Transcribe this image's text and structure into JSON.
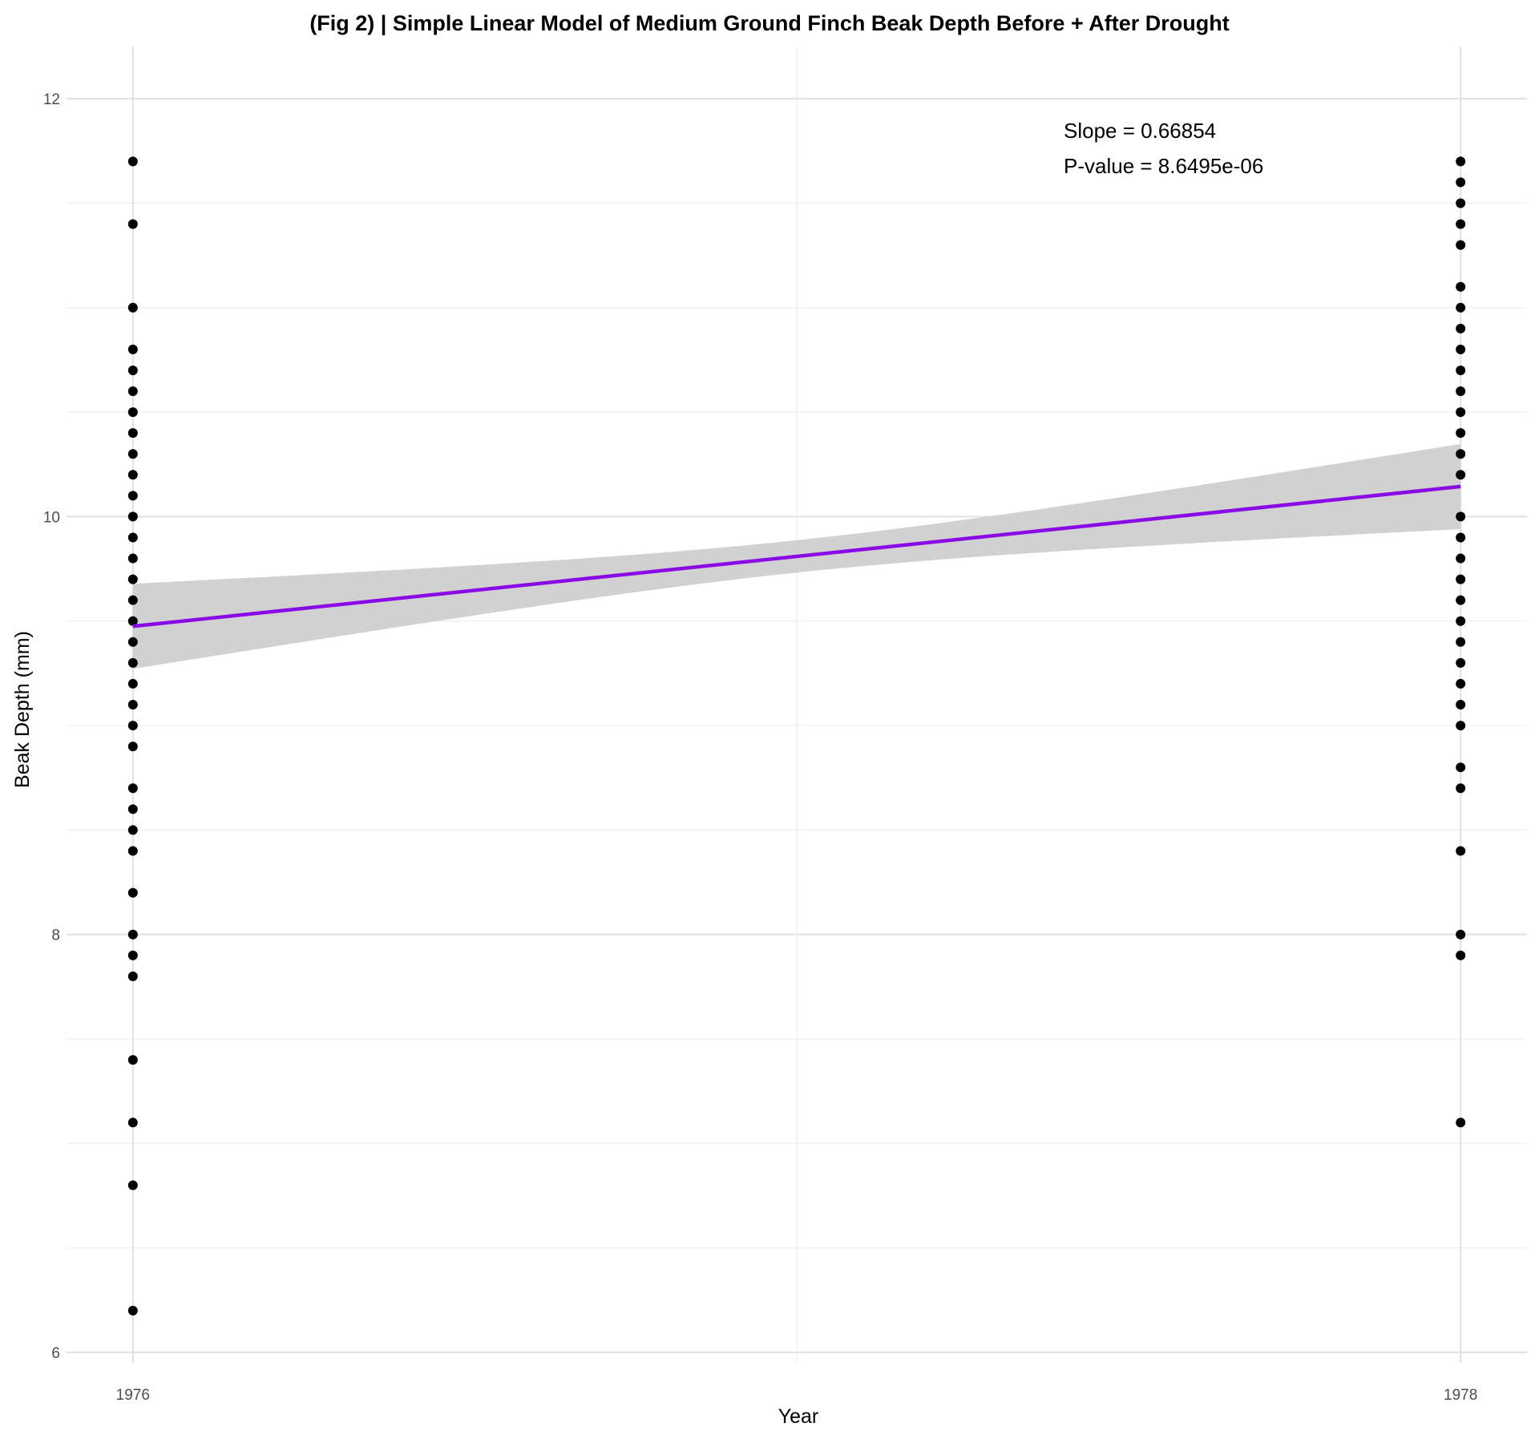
{
  "chart_data": {
    "type": "scatter",
    "title": "(Fig 2) | Simple Linear Model of Medium Ground Finch Beak Depth Before + After Drought",
    "xlabel": "Year",
    "ylabel": "Beak Depth (mm)",
    "xlim": [
      1975.9,
      1978.1
    ],
    "ylim": [
      5.95,
      12.25
    ],
    "x_ticks": [
      1976,
      1978
    ],
    "x_tick_labels": [
      "1976",
      "1978"
    ],
    "y_ticks": [
      6,
      8,
      10,
      12
    ],
    "y_tick_labels": [
      "6",
      "8",
      "10",
      "12"
    ],
    "grid": true,
    "theme": "minimal",
    "points": [
      {
        "x": 1976,
        "values": [
          11.7,
          11.4,
          11.0,
          10.8,
          10.7,
          10.6,
          10.5,
          10.4,
          10.3,
          10.2,
          10.1,
          10.0,
          9.9,
          9.8,
          9.7,
          9.6,
          9.5,
          9.4,
          9.3,
          9.2,
          9.1,
          9.0,
          8.9,
          8.7,
          8.6,
          8.5,
          8.4,
          8.2,
          8.0,
          7.9,
          7.8,
          7.4,
          7.1,
          6.8,
          6.2
        ]
      },
      {
        "x": 1978,
        "values": [
          11.7,
          11.6,
          11.5,
          11.4,
          11.3,
          11.1,
          11.0,
          10.9,
          10.8,
          10.7,
          10.6,
          10.5,
          10.4,
          10.3,
          10.2,
          10.0,
          9.9,
          9.8,
          9.7,
          9.6,
          9.5,
          9.4,
          9.3,
          9.2,
          9.1,
          9.0,
          8.8,
          8.7,
          8.4,
          8.0,
          7.9,
          7.1
        ]
      }
    ],
    "point_color": "#000000",
    "fit": {
      "x": [
        1976,
        1978
      ],
      "y": [
        9.475,
        10.144
      ],
      "ci_lower": [
        9.27,
        9.935
      ],
      "ci_upper": [
        9.68,
        10.34
      ],
      "color": "#8a0ae6",
      "ci_color": "#cfcfcf"
    },
    "annotations": {
      "slope_text": "Slope =  0.66854",
      "pvalue_text": "P-value =  8.6495e-06"
    }
  }
}
